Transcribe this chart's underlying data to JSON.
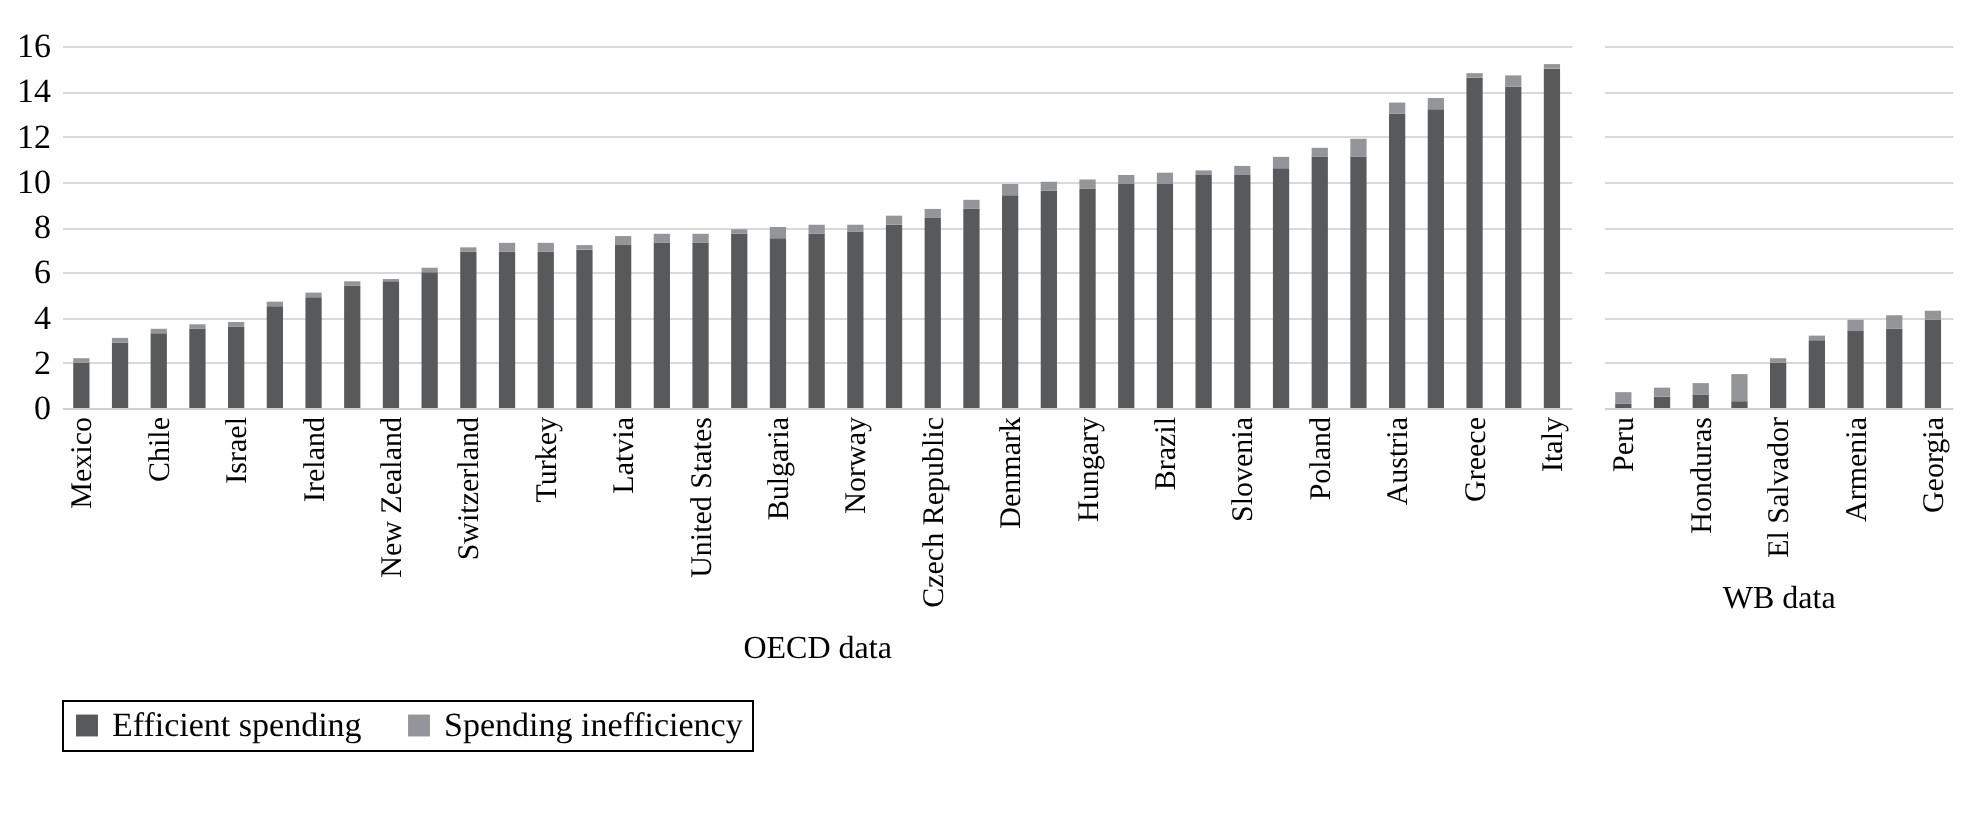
{
  "chart_data": [
    {
      "type": "bar",
      "stacked": true,
      "xlabel": "OECD data",
      "categories": [
        "Mexico",
        null,
        "Chile",
        null,
        "Israel",
        null,
        "Ireland",
        null,
        "New Zealand",
        null,
        "Switzerland",
        null,
        "Turkey",
        null,
        "Latvia",
        null,
        "United States",
        null,
        "Bulgaria",
        null,
        "Norway",
        null,
        "Czech Republic",
        null,
        "Denmark",
        null,
        "Hungary",
        null,
        "Brazil",
        null,
        "Slovenia",
        null,
        "Poland",
        null,
        "Austria",
        null,
        "Greece",
        null,
        "Italy"
      ],
      "series": [
        {
          "name": "Efficient spending",
          "color": "#58595b",
          "values": [
            2.0,
            2.9,
            3.3,
            3.5,
            3.6,
            4.5,
            4.9,
            5.4,
            5.6,
            6.0,
            6.9,
            6.9,
            6.9,
            7.0,
            7.2,
            7.3,
            7.3,
            7.7,
            7.5,
            7.7,
            7.8,
            8.1,
            8.4,
            8.8,
            9.4,
            9.6,
            9.7,
            9.9,
            9.9,
            10.3,
            10.3,
            10.6,
            11.1,
            11.1,
            13.0,
            13.2,
            14.6,
            14.2,
            15.0
          ]
        },
        {
          "name": "Spending inefficiency",
          "color": "#939598",
          "values": [
            0.2,
            0.2,
            0.2,
            0.2,
            0.2,
            0.2,
            0.2,
            0.2,
            0.1,
            0.2,
            0.2,
            0.4,
            0.4,
            0.2,
            0.4,
            0.4,
            0.4,
            0.2,
            0.5,
            0.4,
            0.3,
            0.4,
            0.4,
            0.4,
            0.5,
            0.4,
            0.4,
            0.4,
            0.5,
            0.2,
            0.4,
            0.5,
            0.4,
            0.8,
            0.5,
            0.5,
            0.2,
            0.5,
            0.2
          ]
        }
      ],
      "ylim": [
        0,
        16
      ],
      "yticks": [
        0,
        2,
        4,
        6,
        8,
        10,
        12,
        14,
        16
      ],
      "grid": "y",
      "legend": "bottom"
    },
    {
      "type": "bar",
      "stacked": true,
      "xlabel": "WB data",
      "categories": [
        "Peru",
        null,
        "Honduras",
        null,
        "El Salvador",
        null,
        "Armenia",
        null,
        "Georgia"
      ],
      "series": [
        {
          "name": "Efficient spending",
          "color": "#58595b",
          "values": [
            0.2,
            0.5,
            0.6,
            0.3,
            2.0,
            3.0,
            3.4,
            3.5,
            3.9
          ]
        },
        {
          "name": "Spending inefficiency",
          "color": "#939598",
          "values": [
            0.5,
            0.4,
            0.5,
            1.2,
            0.2,
            0.2,
            0.5,
            0.6,
            0.4
          ]
        }
      ],
      "ylim": [
        0,
        16
      ],
      "yticks": [
        0,
        2,
        4,
        6,
        8,
        10,
        12,
        14,
        16
      ],
      "grid": "y",
      "tick_labels": "x",
      "legend": "bottom"
    }
  ]
}
